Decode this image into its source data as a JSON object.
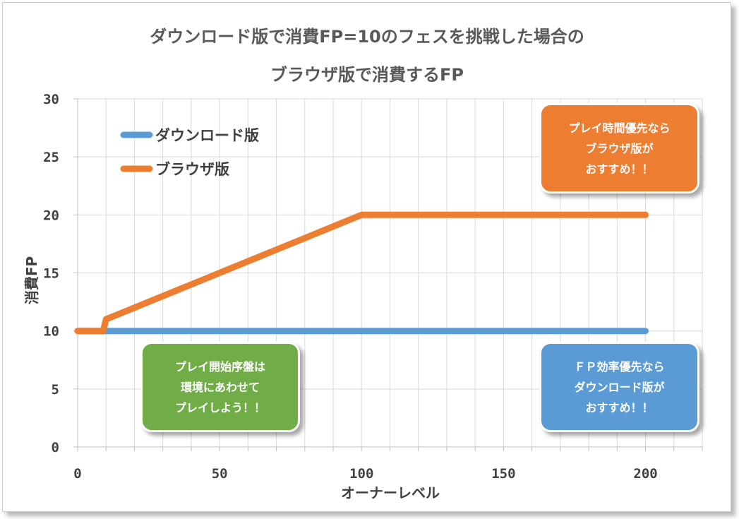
{
  "chart_data": {
    "type": "line",
    "title_line1": "ダウンロード版で消費FP=10のフェスを挑戦した場合の",
    "title_line2": "ブラウザ版で消費するFP",
    "xlabel": "オーナーレベル",
    "ylabel": "消費FP",
    "xlim": [
      0,
      220
    ],
    "ylim": [
      0,
      30
    ],
    "x_ticks": [
      "0",
      "50",
      "100",
      "150",
      "200"
    ],
    "y_ticks": [
      "0",
      "5",
      "10",
      "15",
      "20",
      "25",
      "30"
    ],
    "grid": true,
    "legend_position": "top-left",
    "series": [
      {
        "name": "ダウンロード版",
        "color": "#5b9bd5",
        "x": [
          0,
          200
        ],
        "y": [
          10,
          10
        ]
      },
      {
        "name": "ブラウザ版",
        "color": "#ed7d31",
        "x": [
          0,
          9,
          10,
          100,
          200
        ],
        "y": [
          10,
          10,
          11,
          20,
          20
        ]
      }
    ],
    "annotations": [
      {
        "id": "browser-tip",
        "color": "#ed7d31",
        "lines": [
          "プレイ時間優先なら",
          "ブラウザ版が",
          "おすすめ！！"
        ]
      },
      {
        "id": "early-tip",
        "color": "#70ad47",
        "lines": [
          "プレイ開始序盤は",
          "環境にあわせて",
          "プレイしよう！！"
        ]
      },
      {
        "id": "download-tip",
        "color": "#5b9bd5",
        "lines": [
          "ＦＰ効率優先なら",
          "ダウンロード版が",
          "おすすめ！！"
        ]
      }
    ]
  }
}
